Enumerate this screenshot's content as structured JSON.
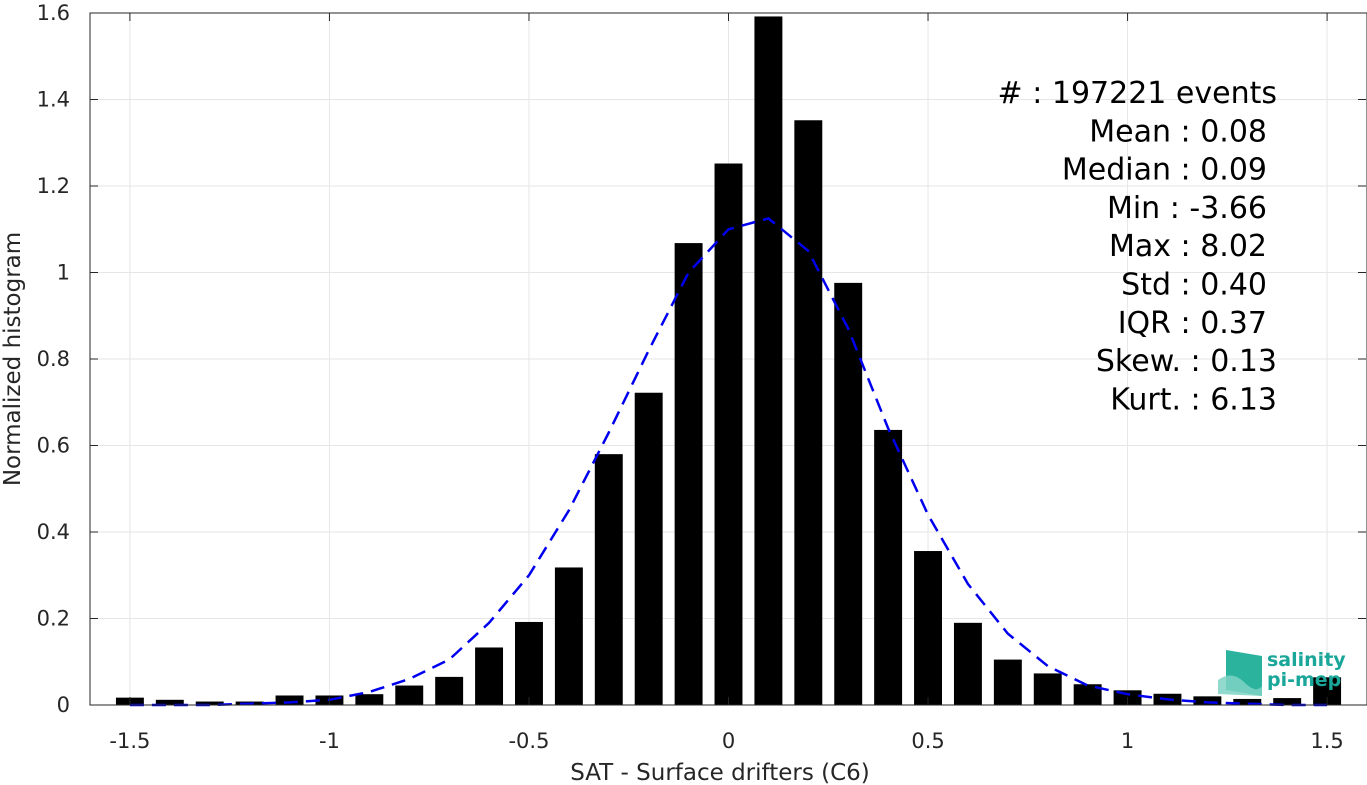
{
  "chart_data": {
    "type": "bar",
    "xlabel": "SAT - Surface drifters (C6)",
    "ylabel": "Normalized histogram",
    "xlim": [
      -1.6,
      1.6
    ],
    "ylim": [
      0,
      1.6
    ],
    "xticks": [
      "-1.5",
      "-1",
      "-0.5",
      "0",
      "0.5",
      "1",
      "1.5"
    ],
    "xtick_values": [
      -1.5,
      -1,
      -0.5,
      0,
      0.5,
      1,
      1.5
    ],
    "yticks": [
      "0",
      "0.2",
      "0.4",
      "0.6",
      "0.8",
      "1",
      "1.2",
      "1.4",
      "1.6"
    ],
    "ytick_values": [
      0,
      0.2,
      0.4,
      0.6,
      0.8,
      1,
      1.2,
      1.4,
      1.6
    ],
    "grid": true,
    "bar_color": "#000000",
    "bar_width": 0.07,
    "x": [
      -1.5,
      -1.4,
      -1.3,
      -1.2,
      -1.1,
      -1.0,
      -0.9,
      -0.8,
      -0.7,
      -0.6,
      -0.5,
      -0.4,
      -0.3,
      -0.2,
      -0.1,
      0.0,
      0.1,
      0.2,
      0.3,
      0.4,
      0.5,
      0.6,
      0.7,
      0.8,
      0.9,
      1.0,
      1.1,
      1.2,
      1.3,
      1.4,
      1.5
    ],
    "values": [
      0.017,
      0.012,
      0.008,
      0.008,
      0.022,
      0.022,
      0.025,
      0.045,
      0.065,
      0.133,
      0.192,
      0.318,
      0.58,
      0.722,
      1.068,
      1.252,
      1.592,
      1.352,
      0.976,
      0.636,
      0.356,
      0.19,
      0.105,
      0.073,
      0.048,
      0.034,
      0.026,
      0.02,
      0.014,
      0.016,
      0.064
    ],
    "fit_curve": {
      "style": "dashed",
      "color": "#0000ee",
      "x": [
        -1.5,
        -1.4,
        -1.3,
        -1.2,
        -1.1,
        -1.0,
        -0.9,
        -0.8,
        -0.7,
        -0.6,
        -0.5,
        -0.4,
        -0.3,
        -0.2,
        -0.1,
        0.0,
        0.1,
        0.2,
        0.3,
        0.4,
        0.5,
        0.6,
        0.7,
        0.8,
        0.9,
        1.0,
        1.1,
        1.2,
        1.3,
        1.4,
        1.5
      ],
      "y": [
        0.0,
        0.0,
        0.0,
        0.003,
        0.006,
        0.012,
        0.03,
        0.06,
        0.105,
        0.19,
        0.3,
        0.45,
        0.63,
        0.82,
        1.0,
        1.1,
        1.125,
        1.05,
        0.87,
        0.64,
        0.44,
        0.28,
        0.165,
        0.09,
        0.045,
        0.025,
        0.013,
        0.006,
        0.003,
        0.0,
        0.0
      ]
    },
    "stats": [
      "#  : 197221 events",
      "Mean : 0.08",
      "Median : 0.09",
      "Min : -3.66",
      "Max : 8.02",
      "Std : 0.40",
      "IQR : 0.37",
      "Skew. : 0.13",
      "Kurt. : 6.13"
    ]
  },
  "logo": {
    "line1": "salinity",
    "line2": "pi-mep"
  }
}
